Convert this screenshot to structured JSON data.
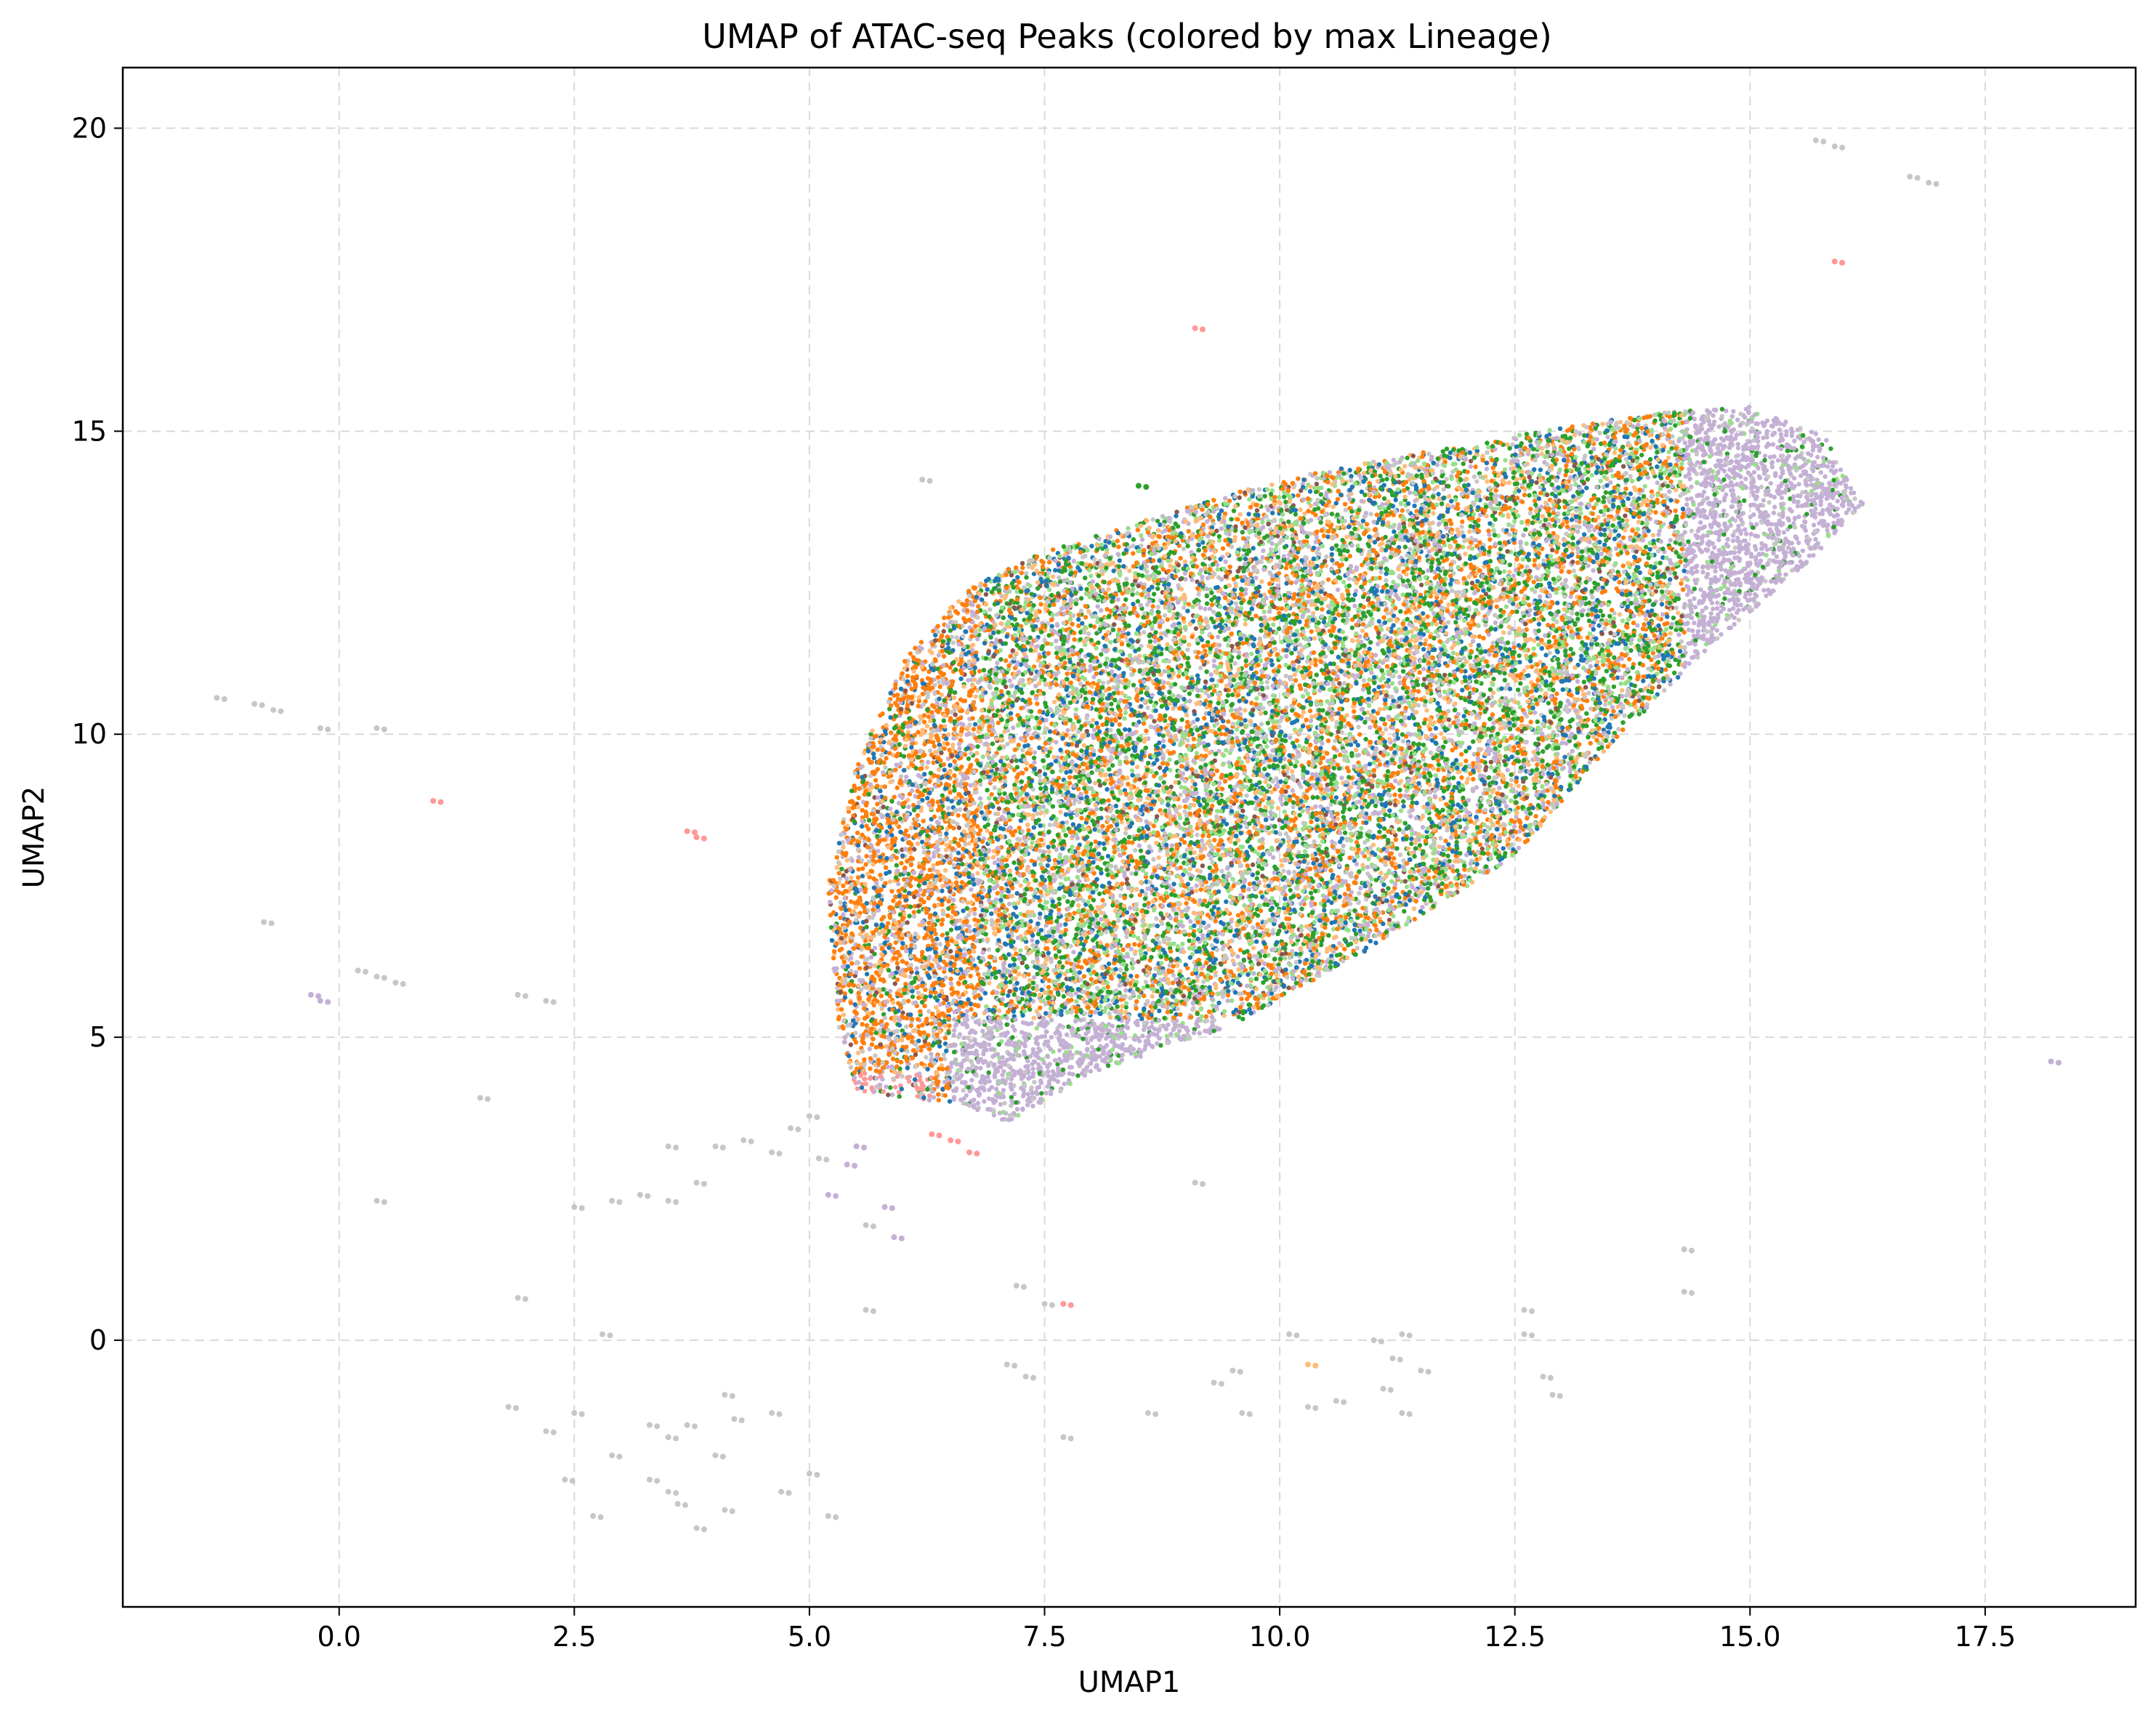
{
  "chart_data": {
    "type": "scatter",
    "title": "UMAP of ATAC-seq Peaks (colored by max Lineage)",
    "xlabel": "UMAP1",
    "ylabel": "UMAP2",
    "xlim": [
      -2.3,
      19.1
    ],
    "ylim": [
      -4.4,
      21.0
    ],
    "grid": true,
    "legend": "none",
    "x_ticks": [
      {
        "value": 0.0,
        "label": "0.0"
      },
      {
        "value": 2.5,
        "label": "2.5"
      },
      {
        "value": 5.0,
        "label": "5.0"
      },
      {
        "value": 7.5,
        "label": "7.5"
      },
      {
        "value": 10.0,
        "label": "10.0"
      },
      {
        "value": 12.5,
        "label": "12.5"
      },
      {
        "value": 15.0,
        "label": "15.0"
      },
      {
        "value": 17.5,
        "label": "17.5"
      }
    ],
    "y_ticks": [
      {
        "value": 0,
        "label": "0"
      },
      {
        "value": 5,
        "label": "5"
      },
      {
        "value": 10,
        "label": "10"
      },
      {
        "value": 15,
        "label": "15"
      },
      {
        "value": 20,
        "label": "20"
      }
    ],
    "main_cloud_outline": [
      [
        7.1,
        3.6
      ],
      [
        6.6,
        3.9
      ],
      [
        5.5,
        4.1
      ],
      [
        5.3,
        5.2
      ],
      [
        5.2,
        7.5
      ],
      [
        5.5,
        9.5
      ],
      [
        6.0,
        11.2
      ],
      [
        6.6,
        12.3
      ],
      [
        7.3,
        12.9
      ],
      [
        8.5,
        13.5
      ],
      [
        10.0,
        14.2
      ],
      [
        12.0,
        14.8
      ],
      [
        14.0,
        15.3
      ],
      [
        15.0,
        15.4
      ],
      [
        15.8,
        14.9
      ],
      [
        16.2,
        13.8
      ],
      [
        15.6,
        12.8
      ],
      [
        14.6,
        11.5
      ],
      [
        13.5,
        9.8
      ],
      [
        12.5,
        8.0
      ],
      [
        11.0,
        6.5
      ],
      [
        9.5,
        5.2
      ],
      [
        8.0,
        4.4
      ],
      [
        7.1,
        3.6
      ]
    ],
    "series_colors": {
      "lavender": "#c5b0d5",
      "orange": "#ff7f0e",
      "light_orange": "#ffbb78",
      "green": "#2ca02c",
      "light_green": "#98df8a",
      "blue": "#1f77b4",
      "salmon": "#ff9896",
      "gray": "#c7c7c7",
      "brown": "#8c564b"
    },
    "outlier_points": [
      {
        "x": 15.7,
        "y": 19.8,
        "color": "gray"
      },
      {
        "x": 15.9,
        "y": 19.7,
        "color": "gray"
      },
      {
        "x": 16.7,
        "y": 19.2,
        "color": "gray"
      },
      {
        "x": 16.9,
        "y": 19.1,
        "color": "gray"
      },
      {
        "x": 15.9,
        "y": 17.8,
        "color": "salmon"
      },
      {
        "x": 9.1,
        "y": 16.7,
        "color": "salmon"
      },
      {
        "x": 6.2,
        "y": 14.2,
        "color": "gray"
      },
      {
        "x": 8.5,
        "y": 14.1,
        "color": "green"
      },
      {
        "x": -1.3,
        "y": 10.6,
        "color": "gray"
      },
      {
        "x": -0.9,
        "y": 10.5,
        "color": "gray"
      },
      {
        "x": -0.7,
        "y": 10.4,
        "color": "gray"
      },
      {
        "x": -0.2,
        "y": 10.1,
        "color": "gray"
      },
      {
        "x": 0.4,
        "y": 10.1,
        "color": "gray"
      },
      {
        "x": 1.0,
        "y": 8.9,
        "color": "salmon"
      },
      {
        "x": 3.7,
        "y": 8.4,
        "color": "salmon"
      },
      {
        "x": 3.8,
        "y": 8.3,
        "color": "salmon"
      },
      {
        "x": -0.8,
        "y": 6.9,
        "color": "gray"
      },
      {
        "x": 0.2,
        "y": 6.1,
        "color": "gray"
      },
      {
        "x": 0.4,
        "y": 6.0,
        "color": "gray"
      },
      {
        "x": 0.6,
        "y": 5.9,
        "color": "gray"
      },
      {
        "x": -0.3,
        "y": 5.7,
        "color": "lavender"
      },
      {
        "x": -0.2,
        "y": 5.6,
        "color": "lavender"
      },
      {
        "x": 1.9,
        "y": 5.7,
        "color": "gray"
      },
      {
        "x": 2.2,
        "y": 5.6,
        "color": "gray"
      },
      {
        "x": 1.5,
        "y": 4.0,
        "color": "gray"
      },
      {
        "x": 18.2,
        "y": 4.6,
        "color": "lavender"
      },
      {
        "x": 3.5,
        "y": 3.2,
        "color": "gray"
      },
      {
        "x": 4.0,
        "y": 3.2,
        "color": "gray"
      },
      {
        "x": 4.3,
        "y": 3.3,
        "color": "gray"
      },
      {
        "x": 4.8,
        "y": 3.5,
        "color": "gray"
      },
      {
        "x": 5.0,
        "y": 3.7,
        "color": "gray"
      },
      {
        "x": 4.6,
        "y": 3.1,
        "color": "gray"
      },
      {
        "x": 3.8,
        "y": 2.6,
        "color": "gray"
      },
      {
        "x": 3.5,
        "y": 2.3,
        "color": "gray"
      },
      {
        "x": 3.2,
        "y": 2.4,
        "color": "gray"
      },
      {
        "x": 2.5,
        "y": 2.2,
        "color": "gray"
      },
      {
        "x": 2.9,
        "y": 2.3,
        "color": "gray"
      },
      {
        "x": 0.4,
        "y": 2.3,
        "color": "gray"
      },
      {
        "x": 5.2,
        "y": 2.4,
        "color": "lavender"
      },
      {
        "x": 5.4,
        "y": 2.9,
        "color": "lavender"
      },
      {
        "x": 5.5,
        "y": 3.2,
        "color": "lavender"
      },
      {
        "x": 5.8,
        "y": 2.2,
        "color": "lavender"
      },
      {
        "x": 5.9,
        "y": 1.7,
        "color": "lavender"
      },
      {
        "x": 5.6,
        "y": 1.9,
        "color": "gray"
      },
      {
        "x": 5.1,
        "y": 3.0,
        "color": "gray"
      },
      {
        "x": 6.7,
        "y": 3.1,
        "color": "salmon"
      },
      {
        "x": 6.5,
        "y": 3.3,
        "color": "salmon"
      },
      {
        "x": 6.3,
        "y": 3.4,
        "color": "salmon"
      },
      {
        "x": 9.1,
        "y": 2.6,
        "color": "gray"
      },
      {
        "x": 1.9,
        "y": 0.7,
        "color": "gray"
      },
      {
        "x": 2.8,
        "y": 0.1,
        "color": "gray"
      },
      {
        "x": 5.6,
        "y": 0.5,
        "color": "gray"
      },
      {
        "x": 7.2,
        "y": 0.9,
        "color": "gray"
      },
      {
        "x": 7.5,
        "y": 0.6,
        "color": "gray"
      },
      {
        "x": 7.7,
        "y": 0.6,
        "color": "salmon"
      },
      {
        "x": 7.1,
        "y": -0.4,
        "color": "gray"
      },
      {
        "x": 7.3,
        "y": -0.6,
        "color": "gray"
      },
      {
        "x": 8.6,
        "y": -1.2,
        "color": "gray"
      },
      {
        "x": 9.5,
        "y": -0.5,
        "color": "gray"
      },
      {
        "x": 9.3,
        "y": -0.7,
        "color": "gray"
      },
      {
        "x": 9.6,
        "y": -1.2,
        "color": "gray"
      },
      {
        "x": 10.1,
        "y": 0.1,
        "color": "gray"
      },
      {
        "x": 10.3,
        "y": -1.1,
        "color": "gray"
      },
      {
        "x": 10.6,
        "y": -1.0,
        "color": "gray"
      },
      {
        "x": 11.0,
        "y": 0.0,
        "color": "gray"
      },
      {
        "x": 11.3,
        "y": 0.1,
        "color": "gray"
      },
      {
        "x": 11.2,
        "y": -0.3,
        "color": "gray"
      },
      {
        "x": 11.5,
        "y": -0.5,
        "color": "gray"
      },
      {
        "x": 11.1,
        "y": -0.8,
        "color": "gray"
      },
      {
        "x": 11.3,
        "y": -1.2,
        "color": "gray"
      },
      {
        "x": 10.3,
        "y": -0.4,
        "color": "light_orange"
      },
      {
        "x": 12.6,
        "y": 0.5,
        "color": "gray"
      },
      {
        "x": 12.6,
        "y": 0.1,
        "color": "gray"
      },
      {
        "x": 12.8,
        "y": -0.6,
        "color": "gray"
      },
      {
        "x": 12.9,
        "y": -0.9,
        "color": "gray"
      },
      {
        "x": 14.3,
        "y": 1.5,
        "color": "gray"
      },
      {
        "x": 14.3,
        "y": 0.8,
        "color": "gray"
      },
      {
        "x": 1.8,
        "y": -1.1,
        "color": "gray"
      },
      {
        "x": 2.2,
        "y": -1.5,
        "color": "gray"
      },
      {
        "x": 2.5,
        "y": -1.2,
        "color": "gray"
      },
      {
        "x": 2.4,
        "y": -2.3,
        "color": "gray"
      },
      {
        "x": 2.7,
        "y": -2.9,
        "color": "gray"
      },
      {
        "x": 2.9,
        "y": -1.9,
        "color": "gray"
      },
      {
        "x": 3.3,
        "y": -1.4,
        "color": "gray"
      },
      {
        "x": 3.5,
        "y": -1.6,
        "color": "gray"
      },
      {
        "x": 3.3,
        "y": -2.3,
        "color": "gray"
      },
      {
        "x": 3.5,
        "y": -2.5,
        "color": "gray"
      },
      {
        "x": 3.6,
        "y": -2.7,
        "color": "gray"
      },
      {
        "x": 3.7,
        "y": -1.4,
        "color": "gray"
      },
      {
        "x": 3.8,
        "y": -3.1,
        "color": "gray"
      },
      {
        "x": 4.1,
        "y": -0.9,
        "color": "gray"
      },
      {
        "x": 4.2,
        "y": -1.3,
        "color": "gray"
      },
      {
        "x": 4.0,
        "y": -1.9,
        "color": "gray"
      },
      {
        "x": 4.1,
        "y": -2.8,
        "color": "gray"
      },
      {
        "x": 4.6,
        "y": -1.2,
        "color": "gray"
      },
      {
        "x": 4.7,
        "y": -2.5,
        "color": "gray"
      },
      {
        "x": 5.0,
        "y": -2.2,
        "color": "gray"
      },
      {
        "x": 5.2,
        "y": -2.9,
        "color": "gray"
      },
      {
        "x": 7.7,
        "y": -1.6,
        "color": "gray"
      }
    ]
  }
}
